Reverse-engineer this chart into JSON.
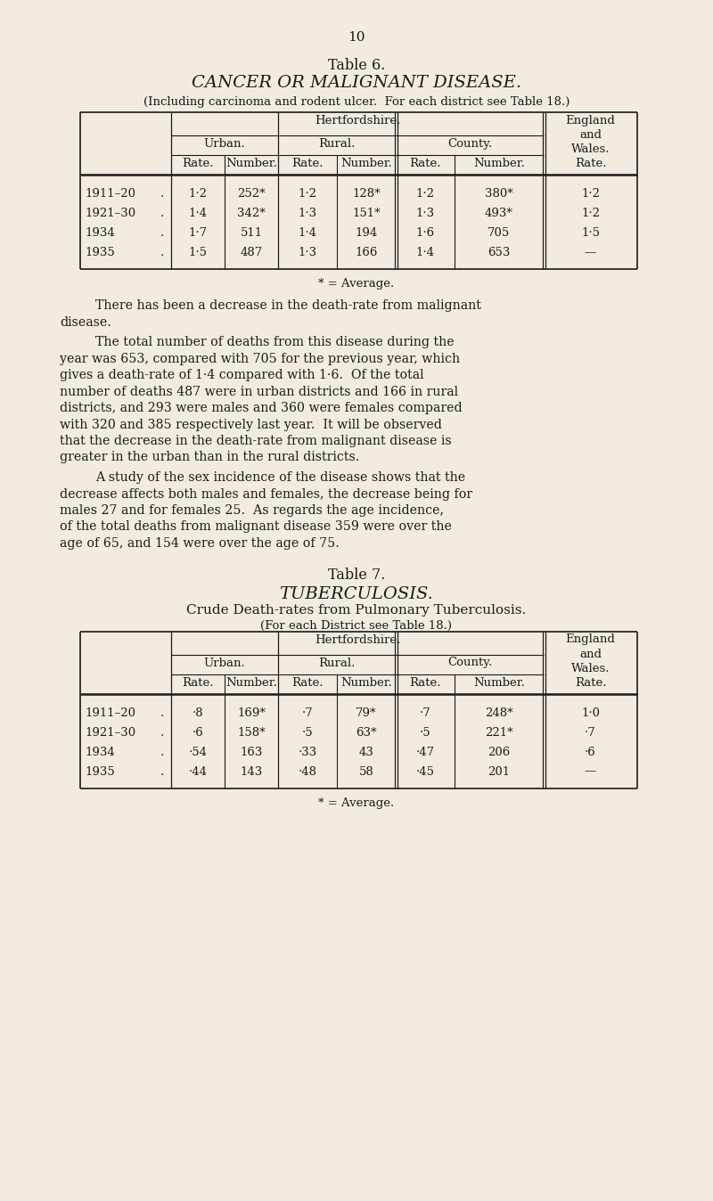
{
  "bg_color": "#f2ece0",
  "text_color": "#1a1a1a",
  "page_number": "10",
  "table6": {
    "title_line1": "Table 6.",
    "title_line2": "CANCER OR MALIGNANT DISEASE.",
    "subtitle": "(Including carcinoma and rodent ulcer.  For each district see Table 18.)",
    "rows": [
      [
        "1911–20",
        ".",
        "1·2",
        "252*",
        "1·2",
        "128*",
        "1·2",
        "380*",
        "1·2"
      ],
      [
        "1921–30",
        ".",
        "1·4",
        "342*",
        "1·3",
        "151*",
        "1·3",
        "493*",
        "1·2"
      ],
      [
        "1934",
        ".",
        "1·7",
        "511",
        "1·4",
        "194",
        "1·6",
        "705",
        "1·5"
      ],
      [
        "1935",
        ".",
        "1·5",
        "487",
        "1·3",
        "166",
        "1·4",
        "653",
        "—"
      ]
    ],
    "footnote": "* = Average."
  },
  "paragraph1": "There has been a decrease in the death-rate from malignant\ndisease.",
  "paragraph2": "The total number of deaths from this disease during the\nyear was 653, compared with 705 for the previous year, which\ngives a death-rate of 1·4 compared with 1·6.  Of the total\nnumber of deaths 487 were in urban districts and 166 in rural\ndistricts, and 293 were males and 360 were females compared\nwith 320 and 385 respectively last year.  It will be observed\nthat the decrease in the death-rate from malignant disease is\ngreater in the urban than in the rural districts.",
  "paragraph3": "A study of the sex incidence of the disease shows that the\ndecrease affects both males and females, the decrease being for\nmales 27 and for females 25.  As regards the age incidence,\nof the total deaths from malignant disease 359 were over the\nage of 65, and 154 were over the age of 75.",
  "table7": {
    "title_line1": "Table 7.",
    "title_line2": "TUBERCULOSIS.",
    "title_line3": "Crude Death-rates from Pulmonary Tuberculosis.",
    "subtitle": "(For each District see Table 18.)",
    "rows": [
      [
        "1911–20",
        ".",
        "·8",
        "169*",
        "·7",
        "79*",
        "·7",
        "248*",
        "1·0"
      ],
      [
        "1921–30",
        ".",
        "·6",
        "158*",
        "·5",
        "63*",
        "·5",
        "221*",
        "·7"
      ],
      [
        "1934",
        ".",
        "·54",
        "163",
        "·33",
        "43",
        "·47",
        "206",
        "·6"
      ],
      [
        "1935",
        ".",
        "·44",
        "143",
        "·48",
        "58",
        "·45",
        "201",
        "—"
      ]
    ],
    "footnote": "* = Average."
  }
}
